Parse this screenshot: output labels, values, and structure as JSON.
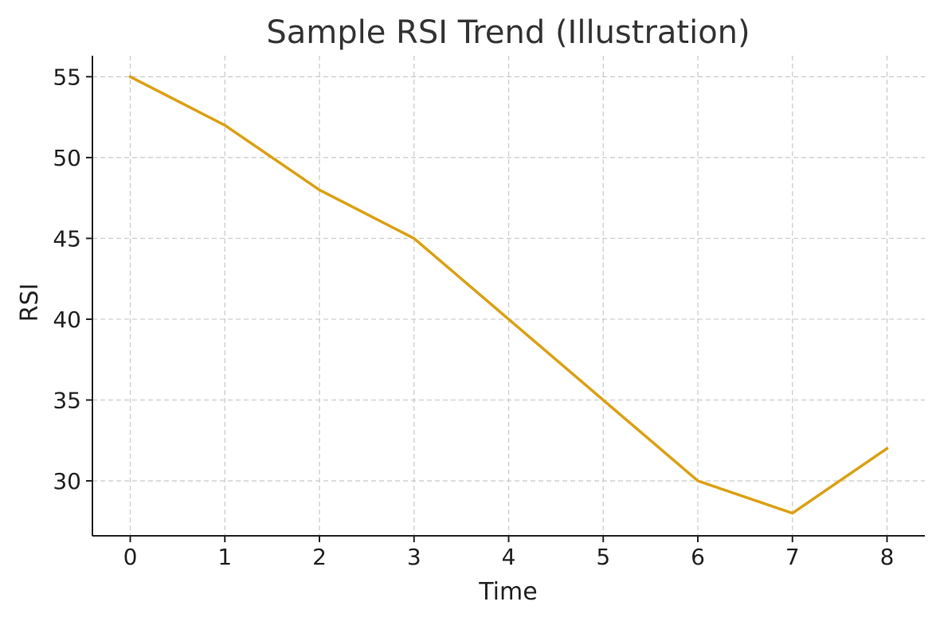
{
  "chart_data": {
    "type": "line",
    "title": "Sample RSI Trend (Illustration)",
    "xlabel": "Time",
    "ylabel": "RSI",
    "x": [
      0,
      1,
      2,
      3,
      4,
      5,
      6,
      7,
      8
    ],
    "series": [
      {
        "values": [
          55,
          52,
          48,
          45,
          40,
          35,
          30,
          28,
          32
        ],
        "color": "#DBA013"
      }
    ],
    "xlim": [
      -0.4,
      8.4
    ],
    "ylim": [
      26.6,
      56.3
    ],
    "xticks": [
      0,
      1,
      2,
      3,
      4,
      5,
      6,
      7,
      8
    ],
    "yticks": [
      30,
      35,
      40,
      45,
      50,
      55
    ],
    "grid": true,
    "grid_style": "dashed"
  }
}
